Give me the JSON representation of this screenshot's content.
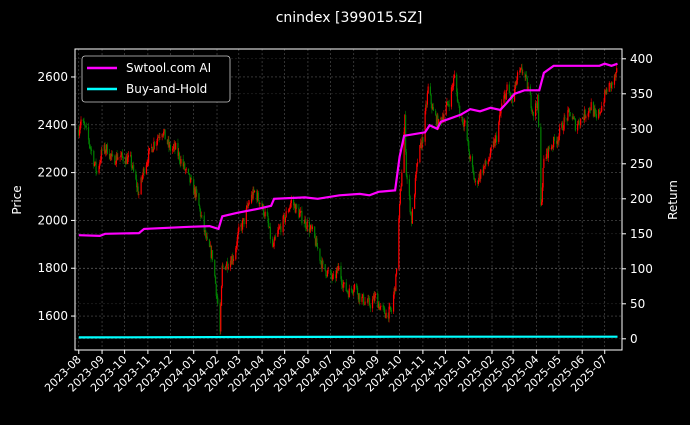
{
  "chart_data": {
    "type": "candlestick+line",
    "title": "cnindex [399015.SZ]",
    "ylabel": "Price",
    "y2label": "Return",
    "xlim": [
      "2023-07-27",
      "2025-07-24"
    ],
    "ylim": [
      1458,
      2717
    ],
    "y2lim": [
      -16,
      414
    ],
    "yticks": [
      1600,
      1800,
      2000,
      2200,
      2400,
      2600
    ],
    "y2ticks": [
      0,
      50,
      100,
      150,
      200,
      250,
      300,
      350,
      400
    ],
    "xticks": [
      "2023-08",
      "2023-09",
      "2023-10",
      "2023-11",
      "2023-12",
      "2024-01",
      "2024-02",
      "2024-03",
      "2024-04",
      "2024-05",
      "2024-06",
      "2024-07",
      "2024-08",
      "2024-09",
      "2024-10",
      "2024-11",
      "2024-12",
      "2025-01",
      "2025-02",
      "2025-03",
      "2025-04",
      "2025-05",
      "2025-06",
      "2025-07"
    ],
    "grid": true,
    "legend_placement": "top-left",
    "colors": {
      "up": "#ff0000",
      "down": "#008000",
      "strategy": "#ff00ff",
      "buyhold": "#00ffff",
      "grid": "#555555"
    },
    "price_close": [
      [
        "2023-08-01",
        2380
      ],
      [
        "2023-08-04",
        2420
      ],
      [
        "2023-08-10",
        2380
      ],
      [
        "2023-08-17",
        2300
      ],
      [
        "2023-08-25",
        2200
      ],
      [
        "2023-09-01",
        2290
      ],
      [
        "2023-09-08",
        2300
      ],
      [
        "2023-09-15",
        2250
      ],
      [
        "2023-09-22",
        2270
      ],
      [
        "2023-10-09",
        2250
      ],
      [
        "2023-10-20",
        2110
      ],
      [
        "2023-10-27",
        2220
      ],
      [
        "2023-11-03",
        2280
      ],
      [
        "2023-11-10",
        2330
      ],
      [
        "2023-11-20",
        2380
      ],
      [
        "2023-11-30",
        2300
      ],
      [
        "2023-12-08",
        2300
      ],
      [
        "2023-12-15",
        2250
      ],
      [
        "2023-12-22",
        2200
      ],
      [
        "2023-12-29",
        2150
      ],
      [
        "2024-01-05",
        2100
      ],
      [
        "2024-01-12",
        2000
      ],
      [
        "2024-01-19",
        1900
      ],
      [
        "2024-01-26",
        1850
      ],
      [
        "2024-02-02",
        1650
      ],
      [
        "2024-02-05",
        1530
      ],
      [
        "2024-02-08",
        1800
      ],
      [
        "2024-02-23",
        1850
      ],
      [
        "2024-03-01",
        1950
      ],
      [
        "2024-03-08",
        2000
      ],
      [
        "2024-03-15",
        2080
      ],
      [
        "2024-03-22",
        2120
      ],
      [
        "2024-03-29",
        2080
      ],
      [
        "2024-04-08",
        2000
      ],
      [
        "2024-04-15",
        1880
      ],
      [
        "2024-04-22",
        1950
      ],
      [
        "2024-04-30",
        2000
      ],
      [
        "2024-05-10",
        2080
      ],
      [
        "2024-05-20",
        2030
      ],
      [
        "2024-05-31",
        1980
      ],
      [
        "2024-06-07",
        1950
      ],
      [
        "2024-06-14",
        1880
      ],
      [
        "2024-06-21",
        1800
      ],
      [
        "2024-06-28",
        1780
      ],
      [
        "2024-07-05",
        1750
      ],
      [
        "2024-07-12",
        1800
      ],
      [
        "2024-07-19",
        1720
      ],
      [
        "2024-07-26",
        1700
      ],
      [
        "2024-08-02",
        1730
      ],
      [
        "2024-08-09",
        1680
      ],
      [
        "2024-08-16",
        1660
      ],
      [
        "2024-08-23",
        1650
      ],
      [
        "2024-08-30",
        1680
      ],
      [
        "2024-09-06",
        1630
      ],
      [
        "2024-09-13",
        1610
      ],
      [
        "2024-09-20",
        1620
      ],
      [
        "2024-09-26",
        1750
      ],
      [
        "2024-09-30",
        2000
      ],
      [
        "2024-10-08",
        2420
      ],
      [
        "2024-10-10",
        2200
      ],
      [
        "2024-10-17",
        2000
      ],
      [
        "2024-10-25",
        2250
      ],
      [
        "2024-11-01",
        2350
      ],
      [
        "2024-11-08",
        2550
      ],
      [
        "2024-11-15",
        2450
      ],
      [
        "2024-11-22",
        2400
      ],
      [
        "2024-11-29",
        2450
      ],
      [
        "2024-12-06",
        2500
      ],
      [
        "2024-12-13",
        2600
      ],
      [
        "2024-12-20",
        2450
      ],
      [
        "2024-12-27",
        2400
      ],
      [
        "2025-01-03",
        2250
      ],
      [
        "2025-01-10",
        2150
      ],
      [
        "2025-01-17",
        2200
      ],
      [
        "2025-01-27",
        2250
      ],
      [
        "2025-02-07",
        2350
      ],
      [
        "2025-02-14",
        2480
      ],
      [
        "2025-02-21",
        2550
      ],
      [
        "2025-02-28",
        2500
      ],
      [
        "2025-03-07",
        2600
      ],
      [
        "2025-03-14",
        2630
      ],
      [
        "2025-03-21",
        2550
      ],
      [
        "2025-03-28",
        2450
      ],
      [
        "2025-04-03",
        2500
      ],
      [
        "2025-04-07",
        2050
      ],
      [
        "2025-04-11",
        2250
      ],
      [
        "2025-04-18",
        2300
      ],
      [
        "2025-04-30",
        2350
      ],
      [
        "2025-05-09",
        2420
      ],
      [
        "2025-05-16",
        2450
      ],
      [
        "2025-05-23",
        2400
      ],
      [
        "2025-05-30",
        2420
      ],
      [
        "2025-06-06",
        2450
      ],
      [
        "2025-06-13",
        2480
      ],
      [
        "2025-06-20",
        2420
      ],
      [
        "2025-06-27",
        2480
      ],
      [
        "2025-07-04",
        2550
      ],
      [
        "2025-07-11",
        2570
      ],
      [
        "2025-07-18",
        2620
      ]
    ],
    "series": [
      {
        "name": "Swtool.com AI",
        "axis": "right",
        "color": "#ff00ff",
        "values": [
          [
            "2023-08-01",
            148
          ],
          [
            "2023-08-29",
            147
          ],
          [
            "2023-09-05",
            150
          ],
          [
            "2023-10-20",
            151
          ],
          [
            "2023-10-27",
            157
          ],
          [
            "2023-12-26",
            160
          ],
          [
            "2024-01-22",
            161
          ],
          [
            "2024-02-03",
            157
          ],
          [
            "2024-02-08",
            175
          ],
          [
            "2024-02-28",
            180
          ],
          [
            "2024-03-28",
            186
          ],
          [
            "2024-04-13",
            190
          ],
          [
            "2024-04-17",
            200
          ],
          [
            "2024-05-28",
            202
          ],
          [
            "2024-06-14",
            200
          ],
          [
            "2024-07-13",
            205
          ],
          [
            "2024-08-09",
            207
          ],
          [
            "2024-08-22",
            205
          ],
          [
            "2024-09-03",
            210
          ],
          [
            "2024-09-25",
            212
          ],
          [
            "2024-10-01",
            260
          ],
          [
            "2024-10-07",
            290
          ],
          [
            "2024-11-04",
            295
          ],
          [
            "2024-11-10",
            305
          ],
          [
            "2024-11-20",
            300
          ],
          [
            "2024-11-25",
            310
          ],
          [
            "2024-12-21",
            320
          ],
          [
            "2025-01-03",
            328
          ],
          [
            "2025-01-16",
            325
          ],
          [
            "2025-01-30",
            330
          ],
          [
            "2025-02-12",
            327
          ],
          [
            "2025-02-19",
            335
          ],
          [
            "2025-03-03",
            350
          ],
          [
            "2025-03-16",
            355
          ],
          [
            "2025-04-05",
            355
          ],
          [
            "2025-04-11",
            380
          ],
          [
            "2025-04-24",
            390
          ],
          [
            "2025-06-24",
            390
          ],
          [
            "2025-07-01",
            393
          ],
          [
            "2025-07-10",
            390
          ],
          [
            "2025-07-18",
            393
          ]
        ]
      },
      {
        "name": "Buy-and-Hold",
        "axis": "right",
        "color": "#00ffff",
        "values": [
          [
            "2023-08-01",
            2
          ],
          [
            "2024-10-01",
            3
          ],
          [
            "2025-07-18",
            3
          ]
        ]
      }
    ]
  }
}
